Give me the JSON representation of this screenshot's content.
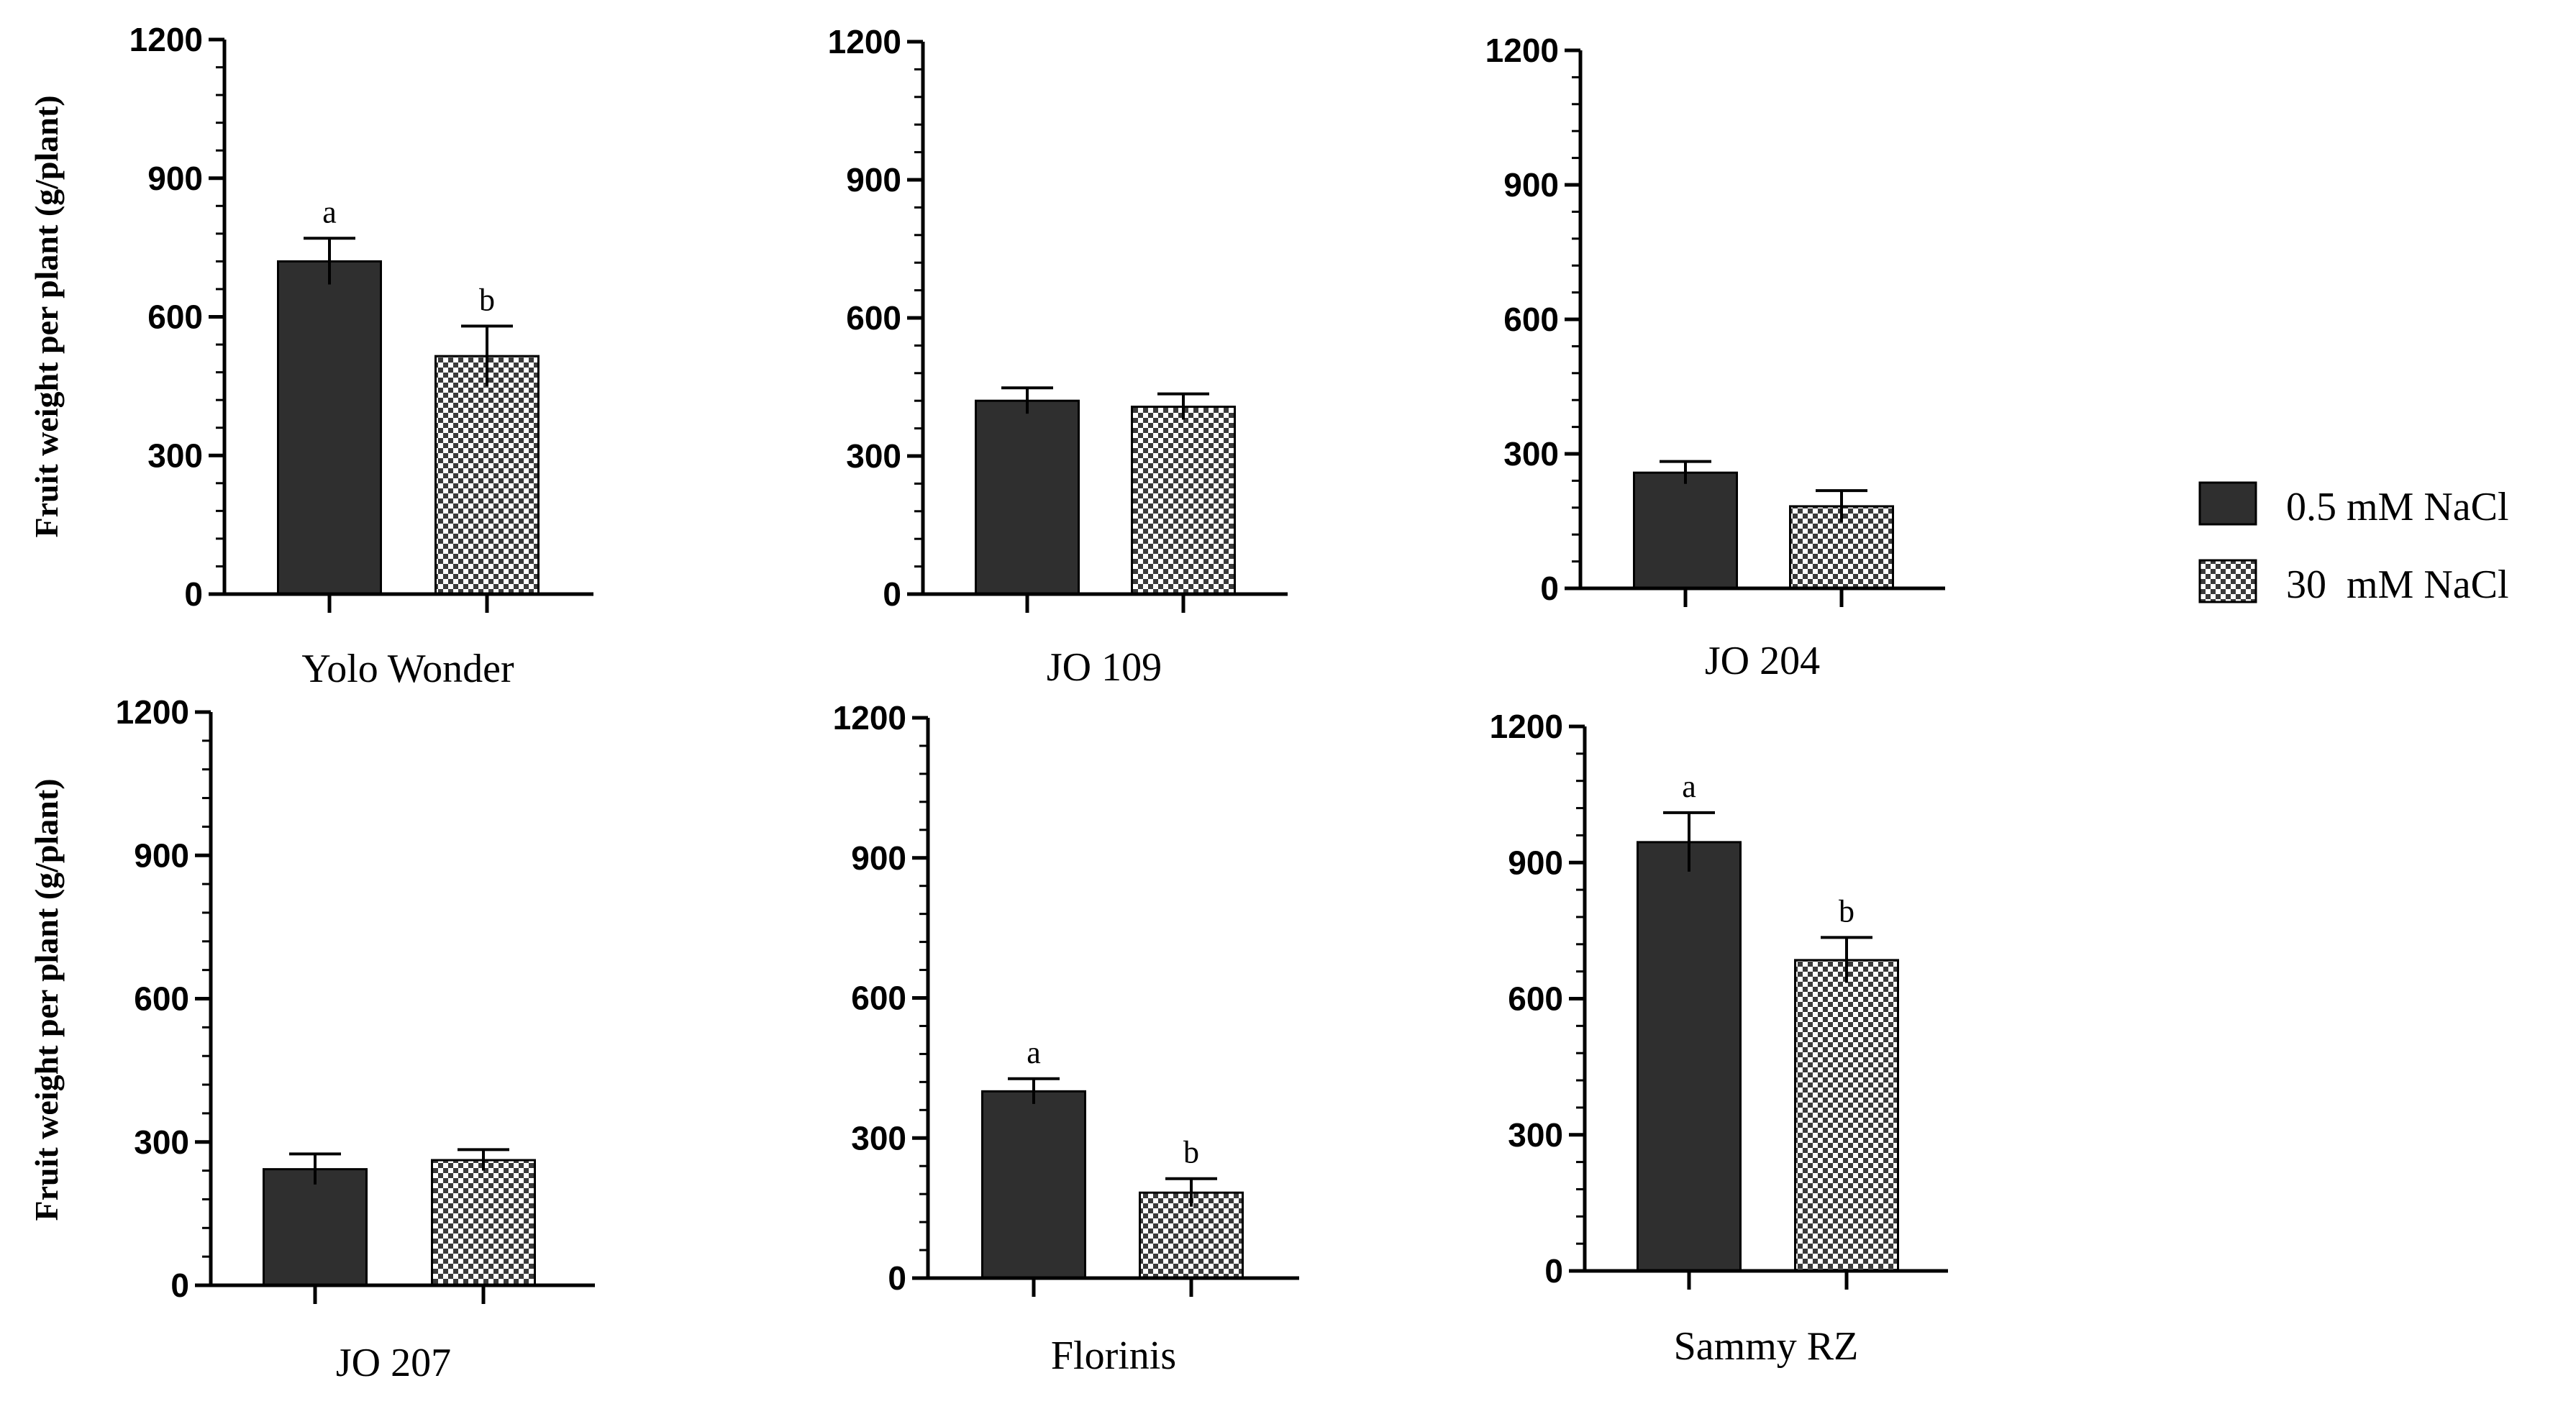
{
  "chart_data": [
    {
      "type": "bar",
      "title": "",
      "xlabel": "Yolo Wonder",
      "ylabel": "Fruit weight per plant (g/plant)",
      "ylim": [
        0,
        1200
      ],
      "yticks": [
        0,
        300,
        600,
        900,
        1200
      ],
      "ytick_labels": [
        "0",
        "300",
        "600",
        "900",
        "1200"
      ],
      "series": [
        {
          "name": "0.5 mM NaCl",
          "values": [
            720
          ],
          "errors": [
            50
          ],
          "labels": [
            "a"
          ]
        },
        {
          "name": "30  mM NaCl",
          "values": [
            515
          ],
          "errors": [
            65
          ],
          "labels": [
            "b"
          ]
        }
      ]
    },
    {
      "type": "bar",
      "title": "",
      "xlabel": "JO 109",
      "ylabel": "",
      "ylim": [
        0,
        1200
      ],
      "yticks": [
        0,
        300,
        600,
        900,
        1200
      ],
      "ytick_labels": [
        "0",
        "300",
        "600",
        "900",
        "1200"
      ],
      "series": [
        {
          "name": "0.5 mM NaCl",
          "values": [
            420
          ],
          "errors": [
            28
          ],
          "labels": [
            ""
          ]
        },
        {
          "name": "30  mM NaCl",
          "values": [
            407
          ],
          "errors": [
            28
          ],
          "labels": [
            ""
          ]
        }
      ]
    },
    {
      "type": "bar",
      "title": "",
      "xlabel": "JO 204",
      "ylabel": "",
      "ylim": [
        0,
        1200
      ],
      "yticks": [
        0,
        300,
        600,
        900,
        1200
      ],
      "ytick_labels": [
        "0",
        "300",
        "600",
        "900",
        "1200"
      ],
      "series": [
        {
          "name": "0.5 mM NaCl",
          "values": [
            258
          ],
          "errors": [
            25
          ],
          "labels": [
            ""
          ]
        },
        {
          "name": "30  mM NaCl",
          "values": [
            183
          ],
          "errors": [
            35
          ],
          "labels": [
            ""
          ]
        }
      ]
    },
    {
      "type": "bar",
      "title": "",
      "xlabel": "JO 207",
      "ylabel": "Fruit weight per plant (g/plant)",
      "ylim": [
        0,
        1200
      ],
      "yticks": [
        0,
        300,
        600,
        900,
        1200
      ],
      "ytick_labels": [
        "0",
        "300",
        "600",
        "900",
        "1200"
      ],
      "series": [
        {
          "name": "0.5 mM NaCl",
          "values": [
            243
          ],
          "errors": [
            32
          ],
          "labels": [
            ""
          ]
        },
        {
          "name": "30  mM NaCl",
          "values": [
            262
          ],
          "errors": [
            22
          ],
          "labels": [
            ""
          ]
        }
      ]
    },
    {
      "type": "bar",
      "title": "",
      "xlabel": "Florinis",
      "ylabel": "",
      "ylim": [
        0,
        1200
      ],
      "yticks": [
        0,
        300,
        600,
        900,
        1200
      ],
      "ytick_labels": [
        "0",
        "300",
        "600",
        "900",
        "1200"
      ],
      "series": [
        {
          "name": "0.5 mM NaCl",
          "values": [
            400
          ],
          "errors": [
            27
          ],
          "labels": [
            "a"
          ]
        },
        {
          "name": "30  mM NaCl",
          "values": [
            183
          ],
          "errors": [
            30
          ],
          "labels": [
            "b"
          ]
        }
      ]
    },
    {
      "type": "bar",
      "title": "",
      "xlabel": "Sammy RZ",
      "ylabel": "",
      "ylim": [
        0,
        1200
      ],
      "yticks": [
        0,
        300,
        600,
        900,
        1200
      ],
      "ytick_labels": [
        "0",
        "300",
        "600",
        "900",
        "1200"
      ],
      "series": [
        {
          "name": "0.5 mM NaCl",
          "values": [
            945
          ],
          "errors": [
            65
          ],
          "labels": [
            "a"
          ]
        },
        {
          "name": "30  mM NaCl",
          "values": [
            685
          ],
          "errors": [
            50
          ],
          "labels": [
            "b"
          ]
        }
      ]
    }
  ],
  "legend": {
    "position": "right",
    "items": [
      {
        "label": "0.5 mM NaCl",
        "fill": "#2f2f2f",
        "pattern": "solid"
      },
      {
        "label": "30  mM NaCl",
        "fill": "#ffffff",
        "pattern": "checker"
      }
    ]
  },
  "colors": {
    "bar_solid": "#2f2f2f",
    "axis": "#000000",
    "checker_dark": "#3a3a3a"
  }
}
